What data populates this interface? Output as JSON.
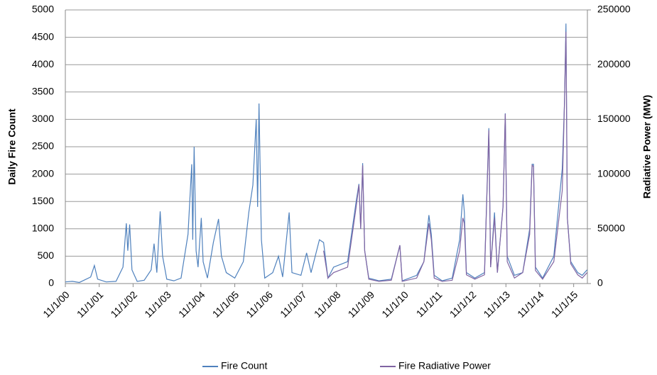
{
  "chart_data": {
    "type": "line",
    "y_label": "Daily Fire Count",
    "y2_label": "Radiative Power (MW)",
    "x": [
      "2000-11-01",
      "2001-01-15",
      "2001-04-01",
      "2001-08-01",
      "2001-09-10",
      "2001-10-15",
      "2002-01-15",
      "2002-05-01",
      "2002-07-15",
      "2002-08-20",
      "2002-09-05",
      "2002-09-25",
      "2002-10-20",
      "2002-12-15",
      "2003-03-01",
      "2003-05-15",
      "2003-06-15",
      "2003-07-15",
      "2003-08-20",
      "2003-09-15",
      "2003-10-30",
      "2004-01-15",
      "2004-04-01",
      "2004-06-15",
      "2004-07-25",
      "2004-08-05",
      "2004-08-20",
      "2004-09-10",
      "2004-10-01",
      "2004-11-05",
      "2004-11-25",
      "2005-01-10",
      "2005-03-15",
      "2005-05-10",
      "2005-06-10",
      "2005-08-01",
      "2005-11-01",
      "2006-02-01",
      "2006-04-01",
      "2006-05-15",
      "2006-06-20",
      "2006-07-05",
      "2006-07-20",
      "2006-08-15",
      "2006-09-20",
      "2006-12-15",
      "2007-02-15",
      "2007-04-01",
      "2007-06-10",
      "2007-07-10",
      "2007-10-15",
      "2007-12-15",
      "2008-02-01",
      "2008-05-01",
      "2008-06-15",
      "2008-08-01",
      "2008-10-01",
      "2009-03-01",
      "2009-06-01",
      "2009-07-01",
      "2009-07-20",
      "2009-08-10",
      "2009-09-01",
      "2009-10-15",
      "2010-02-01",
      "2010-06-15",
      "2010-09-15",
      "2010-10-10",
      "2011-03-15",
      "2011-06-01",
      "2011-07-25",
      "2011-08-20",
      "2011-09-20",
      "2011-12-15",
      "2012-04-01",
      "2012-06-20",
      "2012-07-25",
      "2012-08-10",
      "2012-09-01",
      "2012-12-01",
      "2013-03-15",
      "2013-05-01",
      "2013-05-20",
      "2013-07-01",
      "2013-08-01",
      "2013-10-01",
      "2013-10-25",
      "2013-11-15",
      "2014-02-01",
      "2014-05-01",
      "2014-07-15",
      "2014-08-10",
      "2014-08-25",
      "2014-09-15",
      "2014-12-01",
      "2015-04-01",
      "2015-07-01",
      "2015-07-25",
      "2015-08-10",
      "2015-08-25",
      "2015-10-01",
      "2015-12-15",
      "2016-02-01",
      "2016-03-25"
    ],
    "series": [
      {
        "name": "Fire Count",
        "color": "#4f81bd",
        "values": [
          30,
          40,
          20,
          120,
          330,
          80,
          30,
          40,
          300,
          1100,
          600,
          1080,
          250,
          40,
          60,
          250,
          730,
          200,
          1320,
          500,
          80,
          50,
          100,
          900,
          2180,
          800,
          2500,
          600,
          300,
          1200,
          400,
          100,
          750,
          1180,
          500,
          200,
          100,
          400,
          1300,
          1800,
          3000,
          1400,
          3290,
          800,
          100,
          200,
          500,
          120,
          1300,
          200,
          150,
          560,
          200,
          800,
          750,
          100,
          300,
          400,
          1500,
          1820,
          1000,
          2200,
          600,
          100,
          50,
          80,
          700,
          50,
          150,
          400,
          1250,
          900,
          150,
          50,
          100,
          800,
          1630,
          1300,
          200,
          100,
          200,
          2840,
          300,
          1300,
          200,
          1420,
          3110,
          500,
          150,
          200,
          1000,
          2180,
          2180,
          300,
          100,
          500,
          2100,
          3300,
          4750,
          1200,
          400,
          200,
          150,
          250
        ]
      },
      {
        "name": "Fire Radiative Power",
        "color": "#8064a2",
        "axis": "y2",
        "values": [
          null,
          null,
          null,
          null,
          null,
          null,
          null,
          null,
          null,
          null,
          null,
          null,
          null,
          null,
          null,
          null,
          null,
          null,
          null,
          null,
          null,
          null,
          null,
          null,
          null,
          null,
          null,
          null,
          null,
          null,
          null,
          null,
          null,
          null,
          null,
          null,
          null,
          null,
          null,
          null,
          null,
          null,
          null,
          null,
          null,
          null,
          null,
          null,
          null,
          null,
          null,
          null,
          null,
          null,
          30000,
          5000,
          10000,
          15000,
          70000,
          90000,
          50000,
          108000,
          30000,
          4000,
          2000,
          3000,
          35000,
          2000,
          5000,
          20000,
          55000,
          40000,
          5000,
          2000,
          3000,
          30000,
          60000,
          55000,
          8000,
          4000,
          8000,
          140000,
          15000,
          60000,
          10000,
          70000,
          155000,
          20000,
          5000,
          10000,
          45000,
          108000,
          107000,
          12000,
          4000,
          20000,
          85000,
          165000,
          230000,
          60000,
          18000,
          8000,
          5000,
          10000
        ]
      }
    ],
    "xlim": [
      "2000-11-01",
      "2016-03-28"
    ],
    "xticks": [
      {
        "value": "2000-11-01",
        "label": "11/1/00"
      },
      {
        "value": "2001-11-01",
        "label": "11/1/01"
      },
      {
        "value": "2002-11-01",
        "label": "11/1/02"
      },
      {
        "value": "2003-11-01",
        "label": "11/1/03"
      },
      {
        "value": "2004-11-01",
        "label": "11/1/04"
      },
      {
        "value": "2005-11-01",
        "label": "11/1/05"
      },
      {
        "value": "2006-11-01",
        "label": "11/1/06"
      },
      {
        "value": "2007-11-01",
        "label": "11/1/07"
      },
      {
        "value": "2008-11-01",
        "label": "11/1/08"
      },
      {
        "value": "2009-11-01",
        "label": "11/1/09"
      },
      {
        "value": "2010-11-01",
        "label": "11/1/10"
      },
      {
        "value": "2011-11-01",
        "label": "11/1/11"
      },
      {
        "value": "2012-11-01",
        "label": "11/1/12"
      },
      {
        "value": "2013-11-01",
        "label": "11/1/13"
      },
      {
        "value": "2014-11-01",
        "label": "11/1/14"
      },
      {
        "value": "2015-11-01",
        "label": "11/1/15"
      }
    ],
    "ylim": [
      0,
      5000
    ],
    "yticks": [
      0,
      500,
      1000,
      1500,
      2000,
      2500,
      3000,
      3500,
      4000,
      4500,
      5000
    ],
    "y2lim": [
      0,
      250000
    ],
    "y2ticks": [
      0,
      50000,
      100000,
      150000,
      200000,
      250000
    ],
    "grid": true,
    "legend": "bottom"
  }
}
